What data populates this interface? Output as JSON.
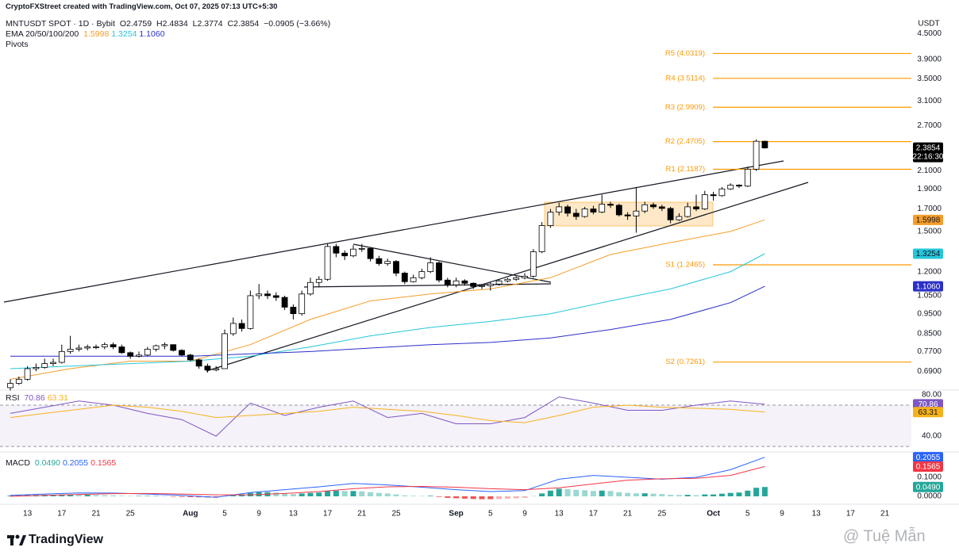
{
  "header": {
    "credit": "CryptoFXStreet created with TradingView.com, Oct 07, 2025 07:13 UTC+5:30",
    "symbol": "MNTUSDT SPOT · 1D · Bybit",
    "ohlc": [
      "O2.4759",
      "H2.4834",
      "L2.3774",
      "C2.3854"
    ],
    "change": "−0.0905 (−3.66%)",
    "ema_title": "EMA 20/50/100/200",
    "pivots_title": "Pivots",
    "currency": "USDT",
    "countdown": "22:16:30"
  },
  "chart_data": [
    {
      "type": "candlestick",
      "log_scale": true,
      "up_color": "#ffffff",
      "down_color": "#000000",
      "pivot_color": "#ff9800",
      "x": [
        "2025-07-11",
        "2025-07-12",
        "2025-07-13",
        "2025-07-14",
        "2025-07-15",
        "2025-07-16",
        "2025-07-17",
        "2025-07-18",
        "2025-07-19",
        "2025-07-20",
        "2025-07-21",
        "2025-07-22",
        "2025-07-23",
        "2025-07-24",
        "2025-07-25",
        "2025-07-26",
        "2025-07-27",
        "2025-07-28",
        "2025-07-29",
        "2025-07-30",
        "2025-07-31",
        "2025-08-01",
        "2025-08-02",
        "2025-08-03",
        "2025-08-04",
        "2025-08-05",
        "2025-08-06",
        "2025-08-07",
        "2025-08-08",
        "2025-08-09",
        "2025-08-10",
        "2025-08-11",
        "2025-08-12",
        "2025-08-13",
        "2025-08-14",
        "2025-08-15",
        "2025-08-16",
        "2025-08-17",
        "2025-08-18",
        "2025-08-19",
        "2025-08-20",
        "2025-08-21",
        "2025-08-22",
        "2025-08-23",
        "2025-08-24",
        "2025-08-25",
        "2025-08-26",
        "2025-08-27",
        "2025-08-28",
        "2025-08-29",
        "2025-08-30",
        "2025-08-31",
        "2025-09-01",
        "2025-09-02",
        "2025-09-03",
        "2025-09-04",
        "2025-09-05",
        "2025-09-06",
        "2025-09-07",
        "2025-09-08",
        "2025-09-09",
        "2025-09-10",
        "2025-09-11",
        "2025-09-12",
        "2025-09-13",
        "2025-09-14",
        "2025-09-15",
        "2025-09-16",
        "2025-09-17",
        "2025-09-18",
        "2025-09-19",
        "2025-09-20",
        "2025-09-21",
        "2025-09-22",
        "2025-09-23",
        "2025-09-24",
        "2025-09-25",
        "2025-09-26",
        "2025-09-27",
        "2025-09-28",
        "2025-09-29",
        "2025-09-30",
        "2025-10-01",
        "2025-10-02",
        "2025-10-03",
        "2025-10-04",
        "2025-10-05",
        "2025-10-06",
        "2025-10-07"
      ],
      "open": [
        0.63,
        0.645,
        0.66,
        0.7,
        0.705,
        0.72,
        0.725,
        0.77,
        0.78,
        0.785,
        0.79,
        0.79,
        0.8,
        0.79,
        0.765,
        0.75,
        0.755,
        0.78,
        0.795,
        0.8,
        0.775,
        0.755,
        0.735,
        0.71,
        0.695,
        0.7,
        0.85,
        0.9,
        0.875,
        1.05,
        1.06,
        1.05,
        1.04,
        0.985,
        0.95,
        1.06,
        1.13,
        1.15,
        1.38,
        1.33,
        1.31,
        1.36,
        1.365,
        1.29,
        1.255,
        1.27,
        1.19,
        1.135,
        1.16,
        1.2,
        1.26,
        1.145,
        1.115,
        1.14,
        1.125,
        1.105,
        1.11,
        1.12,
        1.14,
        1.15,
        1.16,
        1.17,
        1.34,
        1.55,
        1.67,
        1.72,
        1.66,
        1.63,
        1.7,
        1.67,
        1.745,
        1.735,
        1.645,
        1.635,
        1.68,
        1.74,
        1.72,
        1.705,
        1.6,
        1.63,
        1.72,
        1.7,
        1.84,
        1.83,
        1.9,
        1.94,
        1.93,
        2.12,
        2.4759
      ],
      "high": [
        0.66,
        0.67,
        0.71,
        0.72,
        0.74,
        0.74,
        0.8,
        0.84,
        0.8,
        0.8,
        0.8,
        0.81,
        0.81,
        0.8,
        0.77,
        0.77,
        0.79,
        0.8,
        0.81,
        0.8,
        0.78,
        0.76,
        0.74,
        0.72,
        0.71,
        0.87,
        0.93,
        0.92,
        1.08,
        1.12,
        1.08,
        1.07,
        1.05,
        1.0,
        1.08,
        1.16,
        1.17,
        1.4,
        1.4,
        1.35,
        1.39,
        1.4,
        1.37,
        1.31,
        1.29,
        1.28,
        1.2,
        1.18,
        1.22,
        1.3,
        1.27,
        1.16,
        1.16,
        1.15,
        1.13,
        1.12,
        1.13,
        1.15,
        1.16,
        1.17,
        1.19,
        1.36,
        1.58,
        1.7,
        1.76,
        1.74,
        1.7,
        1.72,
        1.73,
        1.84,
        1.77,
        1.75,
        1.67,
        1.92,
        1.77,
        1.76,
        1.74,
        1.72,
        1.66,
        1.76,
        1.84,
        1.88,
        1.87,
        1.92,
        1.96,
        1.95,
        2.15,
        2.5,
        2.4834
      ],
      "low": [
        0.62,
        0.64,
        0.655,
        0.69,
        0.7,
        0.71,
        0.72,
        0.76,
        0.77,
        0.775,
        0.78,
        0.78,
        0.78,
        0.76,
        0.74,
        0.745,
        0.75,
        0.77,
        0.78,
        0.77,
        0.75,
        0.73,
        0.7,
        0.685,
        0.69,
        0.7,
        0.84,
        0.86,
        0.87,
        1.03,
        1.03,
        1.02,
        0.97,
        0.92,
        0.94,
        1.05,
        1.1,
        1.14,
        1.3,
        1.28,
        1.3,
        1.34,
        1.27,
        1.24,
        1.24,
        1.17,
        1.12,
        1.13,
        1.15,
        1.19,
        1.13,
        1.1,
        1.1,
        1.11,
        1.09,
        1.09,
        1.08,
        1.11,
        1.13,
        1.14,
        1.15,
        1.16,
        1.33,
        1.53,
        1.64,
        1.63,
        1.6,
        1.62,
        1.65,
        1.66,
        1.71,
        1.63,
        1.6,
        1.49,
        1.66,
        1.7,
        1.68,
        1.57,
        1.59,
        1.62,
        1.68,
        1.69,
        1.78,
        1.82,
        1.89,
        1.91,
        1.92,
        2.1,
        2.3774
      ],
      "close": [
        0.645,
        0.66,
        0.7,
        0.705,
        0.72,
        0.725,
        0.77,
        0.78,
        0.785,
        0.79,
        0.79,
        0.8,
        0.79,
        0.765,
        0.75,
        0.755,
        0.78,
        0.795,
        0.8,
        0.775,
        0.755,
        0.735,
        0.71,
        0.695,
        0.7,
        0.85,
        0.9,
        0.875,
        1.05,
        1.06,
        1.05,
        1.04,
        0.985,
        0.95,
        1.06,
        1.13,
        1.15,
        1.38,
        1.33,
        1.31,
        1.36,
        1.365,
        1.29,
        1.255,
        1.27,
        1.19,
        1.135,
        1.16,
        1.2,
        1.26,
        1.145,
        1.115,
        1.14,
        1.125,
        1.105,
        1.11,
        1.12,
        1.14,
        1.15,
        1.16,
        1.17,
        1.34,
        1.55,
        1.67,
        1.72,
        1.66,
        1.63,
        1.7,
        1.67,
        1.745,
        1.735,
        1.645,
        1.635,
        1.68,
        1.74,
        1.72,
        1.705,
        1.6,
        1.63,
        1.72,
        1.7,
        1.84,
        1.83,
        1.9,
        1.94,
        1.93,
        2.12,
        2.4759,
        2.3854
      ],
      "ylim": [
        0.627,
        4.59
      ],
      "yticks": [
        {
          "value": 4.5,
          "label": "4.5000"
        },
        {
          "value": 3.9,
          "label": "3.9000"
        },
        {
          "value": 3.5,
          "label": "3.5000"
        },
        {
          "value": 3.1,
          "label": "3.1000"
        },
        {
          "value": 2.7,
          "label": "2.7000"
        },
        {
          "value": 2.1,
          "label": "2.1000"
        },
        {
          "value": 1.9,
          "label": "1.9000"
        },
        {
          "value": 1.7,
          "label": "1.7000"
        },
        {
          "value": 1.5,
          "label": "1.5000"
        },
        {
          "value": 1.2,
          "label": "1.2000"
        },
        {
          "value": 1.05,
          "label": "1.0500"
        },
        {
          "value": 0.95,
          "label": "0.9500"
        },
        {
          "value": 0.85,
          "label": "0.8500"
        },
        {
          "value": 0.77,
          "label": "0.7700"
        },
        {
          "value": 0.69,
          "label": "0.6900"
        }
      ],
      "xticks": [
        {
          "value": "2025-07-13",
          "label": "13"
        },
        {
          "value": "2025-07-17",
          "label": "17"
        },
        {
          "value": "2025-07-21",
          "label": "21"
        },
        {
          "value": "2025-07-25",
          "label": "25"
        },
        {
          "value": "2025-08-01",
          "label": "Aug"
        },
        {
          "value": "2025-08-05",
          "label": "5"
        },
        {
          "value": "2025-08-09",
          "label": "9"
        },
        {
          "value": "2025-08-13",
          "label": "13"
        },
        {
          "value": "2025-08-17",
          "label": "17"
        },
        {
          "value": "2025-08-21",
          "label": "21"
        },
        {
          "value": "2025-08-25",
          "label": "25"
        },
        {
          "value": "2025-09-01",
          "label": "Sep"
        },
        {
          "value": "2025-09-05",
          "label": "5"
        },
        {
          "value": "2025-09-09",
          "label": "9"
        },
        {
          "value": "2025-09-13",
          "label": "13"
        },
        {
          "value": "2025-09-17",
          "label": "17"
        },
        {
          "value": "2025-09-21",
          "label": "21"
        },
        {
          "value": "2025-09-25",
          "label": "25"
        },
        {
          "value": "2025-10-01",
          "label": "Oct"
        },
        {
          "value": "2025-10-05",
          "label": "5"
        },
        {
          "value": "2025-10-09",
          "label": "9"
        },
        {
          "value": "2025-10-13",
          "label": "13"
        },
        {
          "value": "2025-10-17",
          "label": "17"
        },
        {
          "value": "2025-10-21",
          "label": "21"
        }
      ],
      "ema_x": [
        "2025-07-11",
        "2025-07-18",
        "2025-07-25",
        "2025-08-01",
        "2025-08-08",
        "2025-08-15",
        "2025-08-22",
        "2025-08-29",
        "2025-09-05",
        "2025-09-12",
        "2025-09-19",
        "2025-09-26",
        "2025-10-03",
        "2025-10-07"
      ],
      "ema": [
        {
          "color": "#f59d2a",
          "values": [
            0.66,
            0.7,
            0.73,
            0.73,
            0.8,
            0.92,
            1.02,
            1.06,
            1.09,
            1.16,
            1.32,
            1.41,
            1.5,
            1.5998
          ]
        },
        {
          "color": "#26c6da",
          "values": [
            0.7,
            0.71,
            0.72,
            0.73,
            0.75,
            0.79,
            0.84,
            0.88,
            0.91,
            0.95,
            1.02,
            1.09,
            1.2,
            1.3254
          ]
        },
        {
          "color": "#2b2fc9",
          "values": [
            0.75,
            0.75,
            0.75,
            0.75,
            0.76,
            0.77,
            0.785,
            0.8,
            0.81,
            0.83,
            0.87,
            0.92,
            1.01,
            1.106
          ],
          "last_label": "1.1060"
        }
      ],
      "pivots": [
        {
          "label": "R5 (4.0319)",
          "value": 4.0319
        },
        {
          "label": "R4 (3.5114)",
          "value": 3.5114
        },
        {
          "label": "R3 (2.9909)",
          "value": 2.9909
        },
        {
          "label": "R2 (2.4705)",
          "value": 2.4705
        },
        {
          "label": "R1 (2.1187)",
          "value": 2.1187
        },
        {
          "label": "S1 (1.2465)",
          "value": 1.2465
        },
        {
          "label": "S2 (0.7261)",
          "value": 0.7261
        }
      ]
    },
    {
      "type": "line",
      "title": "RSI",
      "x": [
        "2025-07-11",
        "2025-07-15",
        "2025-07-19",
        "2025-07-23",
        "2025-07-27",
        "2025-07-31",
        "2025-08-04",
        "2025-08-08",
        "2025-08-12",
        "2025-08-16",
        "2025-08-20",
        "2025-08-24",
        "2025-08-28",
        "2025-09-01",
        "2025-09-05",
        "2025-09-09",
        "2025-09-13",
        "2025-09-17",
        "2025-09-21",
        "2025-09-25",
        "2025-09-29",
        "2025-10-03",
        "2025-10-07"
      ],
      "series": [
        {
          "color": "#7e57c2",
          "values": [
            62,
            68,
            74,
            70,
            62,
            56,
            40,
            72,
            60,
            68,
            74,
            58,
            62,
            52,
            52,
            58,
            78,
            72,
            65,
            65,
            70,
            74,
            70.86
          ]
        },
        {
          "color": "#f7b21b",
          "values": [
            58,
            62,
            66,
            70,
            68,
            64,
            58,
            60,
            62,
            64,
            68,
            66,
            64,
            60,
            55,
            53,
            60,
            68,
            70,
            68,
            67,
            66,
            63.31
          ]
        }
      ],
      "ylim": [
        27,
        82.3
      ],
      "yticks": [
        {
          "value": 80,
          "label": "80.00"
        },
        {
          "value": 40,
          "label": "40.00"
        }
      ],
      "band": [
        30,
        70
      ]
    },
    {
      "type": "macd",
      "title": "MACD",
      "x": [
        "2025-07-11",
        "2025-07-15",
        "2025-07-19",
        "2025-07-23",
        "2025-07-27",
        "2025-07-31",
        "2025-08-04",
        "2025-08-08",
        "2025-08-12",
        "2025-08-16",
        "2025-08-20",
        "2025-08-24",
        "2025-08-28",
        "2025-09-01",
        "2025-09-05",
        "2025-09-09",
        "2025-09-13",
        "2025-09-17",
        "2025-09-21",
        "2025-09-25",
        "2025-09-29",
        "2025-10-03",
        "2025-10-07"
      ],
      "histogram": {
        "color": "#26a69a",
        "negative_color": "#ef5350",
        "last_label": "0.0490",
        "values": [
          0.004,
          0.005,
          0.006,
          0.007,
          0.008,
          0.008,
          0.009,
          0.009,
          0.008,
          0.008,
          0.007,
          0.006,
          0.005,
          0.003,
          0.002,
          0.002,
          0.002,
          0.002,
          0.001,
          -0.001,
          -0.003,
          -0.004,
          -0.005,
          -0.006,
          -0.006,
          0.002,
          0.008,
          0.01,
          0.018,
          0.022,
          0.022,
          0.02,
          0.016,
          0.012,
          0.015,
          0.018,
          0.02,
          0.028,
          0.03,
          0.028,
          0.028,
          0.026,
          0.022,
          0.018,
          0.015,
          0.01,
          0.005,
          0.003,
          0.002,
          0.003,
          -0.003,
          -0.008,
          -0.01,
          -0.012,
          -0.014,
          -0.015,
          -0.015,
          -0.014,
          -0.012,
          -0.01,
          -0.008,
          0.002,
          0.015,
          0.03,
          0.04,
          0.038,
          0.034,
          0.032,
          0.028,
          0.03,
          0.028,
          0.022,
          0.018,
          0.016,
          0.016,
          0.014,
          0.012,
          0.008,
          0.007,
          0.008,
          0.006,
          0.01,
          0.01,
          0.014,
          0.018,
          0.02,
          0.03,
          0.045,
          0.049
        ]
      },
      "series": [
        {
          "color": "#2962ff",
          "values": [
            0.005,
            0.012,
            0.018,
            0.017,
            0.012,
            0.005,
            -0.005,
            0.02,
            0.035,
            0.05,
            0.068,
            0.06,
            0.048,
            0.035,
            0.025,
            0.03,
            0.09,
            0.11,
            0.1,
            0.09,
            0.1,
            0.14,
            0.2055
          ]
        },
        {
          "color": "#f23645",
          "values": [
            0.0,
            0.005,
            0.01,
            0.014,
            0.015,
            0.012,
            0.008,
            0.008,
            0.015,
            0.025,
            0.04,
            0.05,
            0.052,
            0.048,
            0.04,
            0.035,
            0.045,
            0.065,
            0.085,
            0.092,
            0.095,
            0.11,
            0.1565
          ]
        }
      ],
      "ylim": [
        -0.025,
        0.225
      ],
      "yticks": [
        {
          "value": 0.1,
          "label": "0.1000"
        },
        {
          "value": 0,
          "label": "0.0000"
        }
      ]
    }
  ],
  "footer": {
    "brand": "TradingView",
    "watermark": "@ Tuệ Mẫn"
  }
}
